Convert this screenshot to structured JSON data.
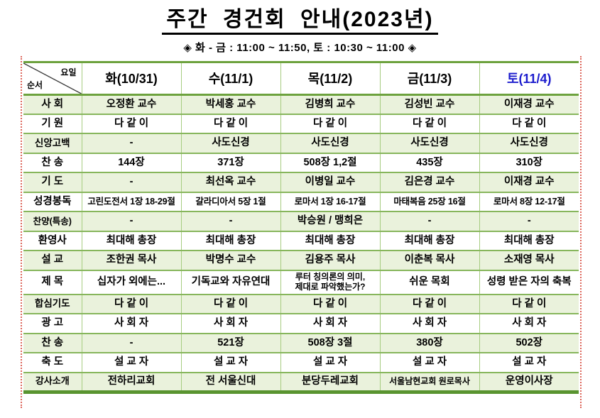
{
  "title": "주간 경건회 안내(2023년)",
  "subtitle": "◈  화 - 금 : 11:00 ~ 11:50,  토 : 10:30 ~ 11:00  ◈",
  "table": {
    "corner": {
      "top_right": "요일",
      "bottom_left": "순서"
    },
    "columns": [
      {
        "label": "화(10/31)"
      },
      {
        "label": "수(11/1)"
      },
      {
        "label": "목(11/2)"
      },
      {
        "label": "금(11/3)"
      },
      {
        "label": "토(11/4)",
        "color": "#1c1ccd"
      }
    ],
    "rows": [
      {
        "label": "사 회",
        "cells": [
          "오정환 교수",
          "박세홍 교수",
          "김병희 교수",
          "김성빈 교수",
          "이재경 교수"
        ]
      },
      {
        "label": "기 원",
        "cells": [
          "다 같 이",
          "다 같 이",
          "다 같 이",
          "다 같 이",
          "다 같 이"
        ]
      },
      {
        "label": "신앙고백",
        "cells": [
          "-",
          "사도신경",
          "사도신경",
          "사도신경",
          "사도신경"
        ]
      },
      {
        "label": "찬 송",
        "cells": [
          "144장",
          "371장",
          "508장  1,2절",
          "435장",
          "310장"
        ]
      },
      {
        "label": "기 도",
        "cells": [
          "-",
          "최선옥 교수",
          "이병일 교수",
          "김은경 교수",
          "이재경 교수"
        ]
      },
      {
        "label": "성경봉독",
        "cells": [
          "고린도전서 1장  18-29절",
          "갈라디아서  5장  1절",
          "로마서  1장  16-17절",
          "마태복음  25장  16절",
          "로마서  8장  12-17절"
        ]
      },
      {
        "label": "찬양(특송)",
        "cells": [
          "-",
          "-",
          "박승원 / 맹희은",
          "-",
          "-"
        ]
      },
      {
        "label": "환영사",
        "cells": [
          "최대해 총장",
          "최대해 총장",
          "최대해 총장",
          "최대해 총장",
          "최대해 총장"
        ]
      },
      {
        "label": "설 교",
        "cells": [
          "조한권 목사",
          "박명수 교수",
          "김용주 목사",
          "이춘복 목사",
          "소재영 목사"
        ]
      },
      {
        "label": "제 목",
        "cells": [
          "십자가 외에는...",
          "기독교와 자유연대",
          "루터 칭의론의 의미,\n제대로 파악했는가?",
          "쉬운 목회",
          "성령 받은 자의 축복"
        ]
      },
      {
        "label": "합심기도",
        "cells": [
          "다 같 이",
          "다 같 이",
          "다 같 이",
          "다 같 이",
          "다 같 이"
        ]
      },
      {
        "label": "광 고",
        "cells": [
          "사 회 자",
          "사 회 자",
          "사 회 자",
          "사 회 자",
          "사 회 자"
        ]
      },
      {
        "label": "찬 송",
        "cells": [
          "-",
          "521장",
          "508장  3절",
          "380장",
          "502장"
        ]
      },
      {
        "label": "축 도",
        "cells": [
          "설 교 자",
          "설 교 자",
          "설 교 자",
          "설 교 자",
          "설 교 자"
        ]
      },
      {
        "label": "강사소개",
        "cells": [
          "전하리교회",
          "전 서울신대",
          "분당두레교회",
          "서울남현교회 원로목사",
          "운영이사장"
        ]
      }
    ]
  },
  "colors": {
    "border_green": "#6da23e",
    "fill_green": "#eaf2dc",
    "saturday_blue": "#1c1ccd",
    "page_margin_dotted_red": "#dd675c",
    "title_black": "#000000"
  }
}
